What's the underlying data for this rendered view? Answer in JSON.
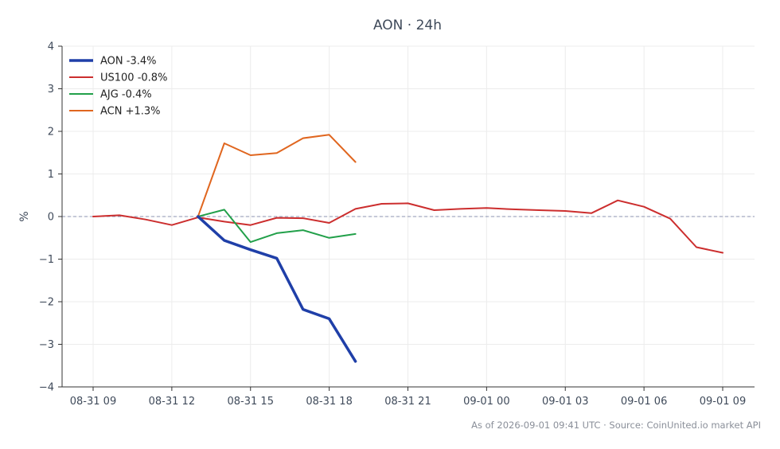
{
  "chart_data": {
    "type": "line",
    "title": "AON · 24h",
    "xlabel": "",
    "ylabel": "%",
    "ylim": [
      -4,
      4
    ],
    "y_ticks": [
      -4,
      -3,
      -2,
      -1,
      0,
      1,
      2,
      3,
      4
    ],
    "y_tick_labels": [
      "−4",
      "−3",
      "−2",
      "−1",
      "0",
      "1",
      "2",
      "3",
      "4"
    ],
    "x_range_hours": [
      -0.75,
      25.2
    ],
    "x_ticks": [
      {
        "h": 0,
        "label": "08-31 09"
      },
      {
        "h": 3,
        "label": "08-31 12"
      },
      {
        "h": 6,
        "label": "08-31 15"
      },
      {
        "h": 9,
        "label": "08-31 18"
      },
      {
        "h": 12,
        "label": "08-31 21"
      },
      {
        "h": 15,
        "label": "09-01 00"
      },
      {
        "h": 18,
        "label": "09-01 03"
      },
      {
        "h": 21,
        "label": "09-01 06"
      },
      {
        "h": 24,
        "label": "09-01 09"
      }
    ],
    "x_hours_origin_label": "08-31 09",
    "zero_line": true,
    "grid": true,
    "legend_position": "top-left",
    "series": [
      {
        "name": "AON -3.4%",
        "color": "#1f3fa8",
        "width": 3.5,
        "points": [
          [
            4,
            0
          ],
          [
            5,
            -0.56
          ],
          [
            6,
            -0.78
          ],
          [
            7,
            -0.98
          ],
          [
            8,
            -2.18
          ],
          [
            9,
            -2.4
          ],
          [
            10,
            -3.4
          ]
        ]
      },
      {
        "name": "US100 -0.8%",
        "color": "#cc2e2e",
        "width": 2,
        "points": [
          [
            0,
            0
          ],
          [
            1,
            0.03
          ],
          [
            2,
            -0.07
          ],
          [
            3,
            -0.2
          ],
          [
            4,
            -0.02
          ],
          [
            5,
            -0.12
          ],
          [
            6,
            -0.2
          ],
          [
            7,
            -0.03
          ],
          [
            8,
            -0.04
          ],
          [
            9,
            -0.15
          ],
          [
            10,
            0.18
          ],
          [
            11,
            0.3
          ],
          [
            12,
            0.31
          ],
          [
            13,
            0.15
          ],
          [
            14,
            0.18
          ],
          [
            15,
            0.2
          ],
          [
            16,
            0.17
          ],
          [
            17,
            0.15
          ],
          [
            18,
            0.13
          ],
          [
            19,
            0.08
          ],
          [
            20,
            0.38
          ],
          [
            21,
            0.23
          ],
          [
            22,
            -0.05
          ],
          [
            23,
            -0.72
          ],
          [
            24,
            -0.85
          ]
        ]
      },
      {
        "name": "AJG -0.4%",
        "color": "#22a04a",
        "width": 2,
        "points": [
          [
            4,
            0
          ],
          [
            5,
            0.16
          ],
          [
            6,
            -0.6
          ],
          [
            7,
            -0.39
          ],
          [
            8,
            -0.32
          ],
          [
            9,
            -0.5
          ],
          [
            10,
            -0.41
          ]
        ]
      },
      {
        "name": "ACN +1.3%",
        "color": "#e0661f",
        "width": 2,
        "points": [
          [
            4,
            0
          ],
          [
            5,
            1.72
          ],
          [
            6,
            1.44
          ],
          [
            7,
            1.49
          ],
          [
            8,
            1.84
          ],
          [
            9,
            1.92
          ],
          [
            10,
            1.28
          ]
        ]
      }
    ]
  },
  "footer": "As of 2026-09-01 09:41 UTC · Source: CoinUnited.io market API"
}
